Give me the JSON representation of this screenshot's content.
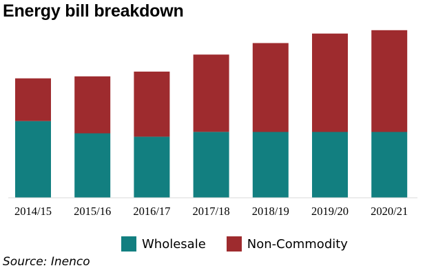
{
  "title": "Energy bill breakdown",
  "source": "Source: Inenco",
  "chart_data": {
    "type": "bar",
    "stacked": true,
    "categories": [
      "2014/15",
      "2015/16",
      "2016/17",
      "2017/18",
      "2018/19",
      "2019/20",
      "2020/21"
    ],
    "series": [
      {
        "name": "Wholesale",
        "color": "#127f80",
        "values": [
          113,
          95,
          90,
          97,
          97,
          97,
          97
        ]
      },
      {
        "name": "Non-Commodity",
        "color": "#9e2b2e",
        "values": [
          63,
          84,
          96,
          114,
          131,
          145,
          150
        ]
      }
    ],
    "ylim": [
      0,
      260
    ],
    "grid": false,
    "legend_position": "bottom"
  }
}
